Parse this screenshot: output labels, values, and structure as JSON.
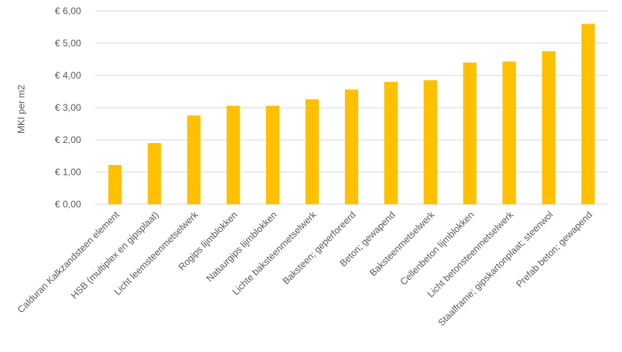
{
  "chart_data": {
    "type": "bar",
    "ylabel": "MKI per m2",
    "ylim": [
      0,
      6
    ],
    "yticks": [
      "€ 0,00",
      "€ 1,00",
      "€ 2,00",
      "€ 3,00",
      "€ 4,00",
      "€ 5,00",
      "€ 6,00"
    ],
    "grid": true,
    "bar_color": "#ffc000",
    "categories": [
      "Calduran Kalkzandsteen element",
      "HSB (multiplex en gipsplaat)",
      "Licht leemsteenmetselwerk",
      "Rogips lijmblokken",
      "Natuurgips lijmblokken",
      "Lichte baksteenmetselwerk",
      "Baksteen; geperforeerd",
      "Beton; gewapend",
      "Baksteenmetselwerk",
      "Cellenbeton lijmblokken",
      "Licht betonsteenmetselwerk",
      "Staalframe; gipskartonplaat; steenwol",
      "Prefab beton; gewapend"
    ],
    "values": [
      1.22,
      1.9,
      2.76,
      3.06,
      3.06,
      3.26,
      3.56,
      3.8,
      3.85,
      4.4,
      4.43,
      4.75,
      5.6
    ]
  }
}
